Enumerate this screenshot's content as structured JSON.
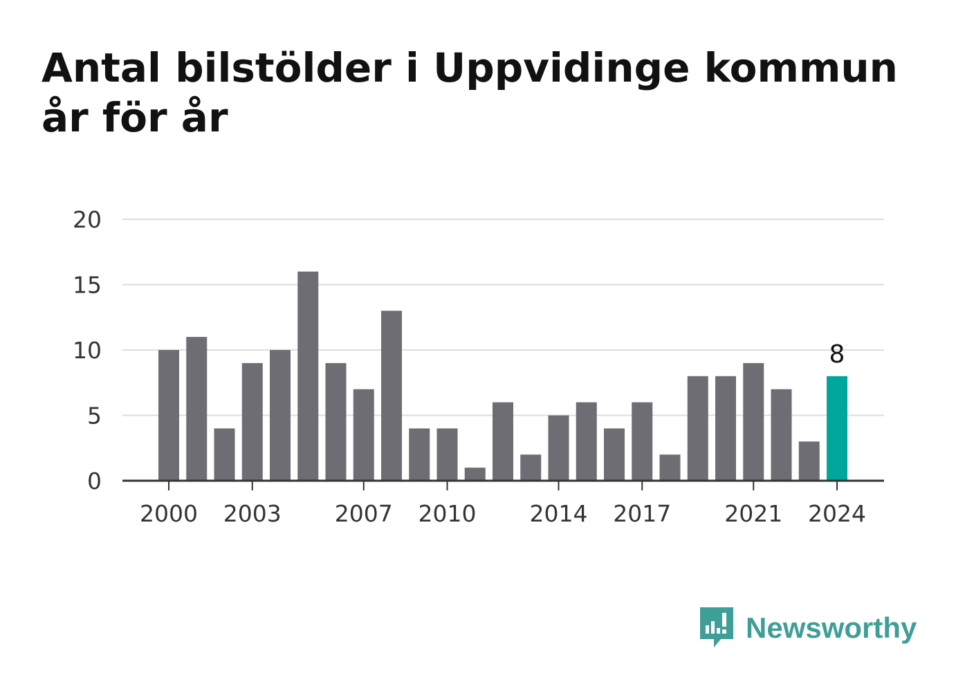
{
  "title_lines": [
    "Antal bilstölder i Uppvidinge kommun",
    "år för år"
  ],
  "brand": {
    "name": "Newsworthy",
    "logo_icon": "newsworthy-chart-bubble-icon"
  },
  "colors": {
    "bar": "#6e6d73",
    "highlight": "#00a69b",
    "grid": "#dddddd",
    "axis": "#333333",
    "text": "#333333"
  },
  "chart_data": {
    "type": "bar",
    "categories": [
      "2000",
      "2001",
      "2002",
      "2003",
      "2004",
      "2005",
      "2006",
      "2007",
      "2008",
      "2009",
      "2010",
      "2011",
      "2012",
      "2013",
      "2014",
      "2015",
      "2016",
      "2017",
      "2018",
      "2019",
      "2020",
      "2021",
      "2022",
      "2023",
      "2024"
    ],
    "values": [
      10,
      11,
      4,
      9,
      10,
      16,
      9,
      7,
      13,
      4,
      4,
      1,
      6,
      2,
      5,
      6,
      4,
      6,
      2,
      8,
      8,
      9,
      7,
      3,
      8
    ],
    "x_tick_labels": [
      "2000",
      "2003",
      "2007",
      "2010",
      "2014",
      "2017",
      "2021",
      "2024"
    ],
    "y_ticks": [
      0,
      5,
      10,
      15,
      20
    ],
    "ylim": [
      0,
      20
    ],
    "highlight": {
      "category": "2024",
      "label": "8"
    },
    "grid": true,
    "title": "Antal bilstölder i Uppvidinge kommun år för år",
    "xlabel": "",
    "ylabel": ""
  }
}
